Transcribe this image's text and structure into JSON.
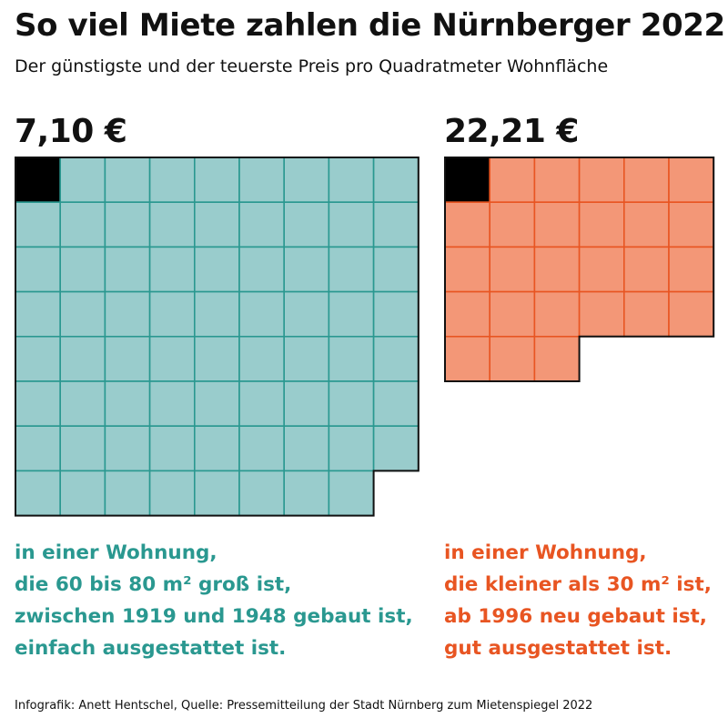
{
  "title": "So viel Miete zahlen die Nürnberger 2022",
  "subtitle": "Der günstigste und der teuerste Preis pro Quadratmeter Wohnfläche",
  "footer": "Infografik: Anett Hentschel, Quelle: Pressemitteilung der Stadt Nürnberg zum Mietenspiegel 2022",
  "chart_data": [
    {
      "type": "waffle",
      "value": 7.1,
      "price_label": "7,10 €",
      "unit": "€ pro m²",
      "total_squares": 71,
      "whole_squares": 70,
      "columns": 9,
      "fill": "#99cccc",
      "stroke": "#2a9890",
      "text_color": "#2a9890",
      "accent_square": "#000000",
      "description": [
        "in einer Wohnung,",
        "die 60 bis 80 m² groß ist,",
        "zwischen 1919 und 1948 gebaut ist,",
        "einfach ausgestattet ist."
      ]
    },
    {
      "type": "waffle",
      "value": 22.21,
      "price_label": "22,21 €",
      "unit": "€ pro m²",
      "total_squares": 27,
      "whole_squares": 26,
      "columns": 6,
      "fill": "#f39777",
      "stroke": "#e85522",
      "text_color": "#e85522",
      "accent_square": "#000000",
      "description": [
        "in einer Wohnung,",
        "die kleiner als 30 m² ist,",
        "ab 1996 neu gebaut ist,",
        "gut ausgestattet ist."
      ]
    }
  ]
}
